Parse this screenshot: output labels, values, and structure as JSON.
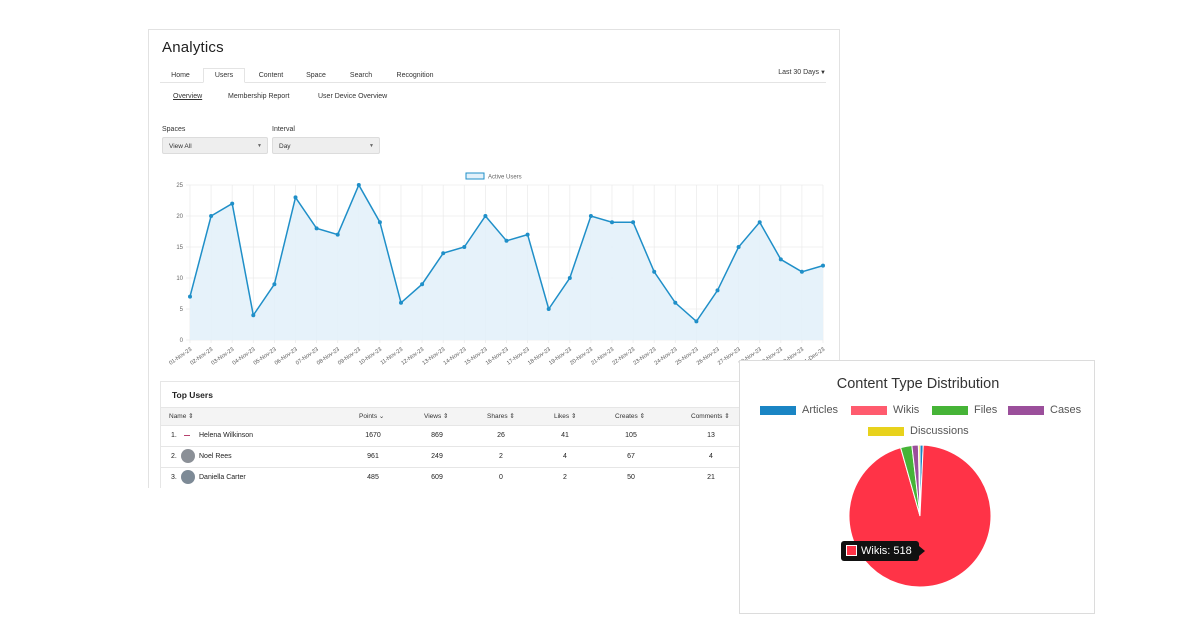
{
  "app": {
    "title": "Analytics"
  },
  "tabs": [
    {
      "label": "Home"
    },
    {
      "label": "Users"
    },
    {
      "label": "Content"
    },
    {
      "label": "Space"
    },
    {
      "label": "Search"
    },
    {
      "label": "Recognition"
    }
  ],
  "active_tab": "Users",
  "date_range": {
    "label": "Last 30 Days"
  },
  "subtabs": [
    {
      "label": "Overview"
    },
    {
      "label": "Membership Report"
    },
    {
      "label": "User Device Overview"
    }
  ],
  "filters": {
    "spaces": {
      "label": "Spaces",
      "value": "View All"
    },
    "interval": {
      "label": "Interval",
      "value": "Day"
    }
  },
  "top_users": {
    "title": "Top Users",
    "columns": [
      "Name",
      "Points",
      "Views",
      "Shares",
      "Likes",
      "Creates",
      "Comments"
    ],
    "rows": [
      {
        "rank": "1.",
        "name": "Helena Wilkinson",
        "points": "1670",
        "views": "869",
        "shares": "26",
        "likes": "41",
        "creates": "105",
        "comments": "13"
      },
      {
        "rank": "2.",
        "name": "Noel Rees",
        "points": "961",
        "views": "249",
        "shares": "2",
        "likes": "4",
        "creates": "67",
        "comments": "4"
      },
      {
        "rank": "3.",
        "name": "Daniella Carter",
        "points": "485",
        "views": "609",
        "shares": "0",
        "likes": "2",
        "creates": "50",
        "comments": "21"
      }
    ]
  },
  "content_card": {
    "title": "Content Type Distribution",
    "tooltip": {
      "label": "Wikis: 518",
      "color": "#ff3347"
    }
  },
  "chart_data": [
    {
      "type": "area",
      "legend": [
        "Active Users"
      ],
      "x": [
        "01-Nov-23",
        "02-Nov-23",
        "03-Nov-23",
        "04-Nov-23",
        "05-Nov-23",
        "06-Nov-23",
        "07-Nov-23",
        "08-Nov-23",
        "09-Nov-23",
        "10-Nov-23",
        "11-Nov-23",
        "12-Nov-23",
        "13-Nov-23",
        "14-Nov-23",
        "15-Nov-23",
        "16-Nov-23",
        "17-Nov-23",
        "18-Nov-23",
        "19-Nov-23",
        "20-Nov-23",
        "21-Nov-23",
        "22-Nov-23",
        "23-Nov-23",
        "24-Nov-23",
        "25-Nov-23",
        "26-Nov-23",
        "27-Nov-23",
        "28-Nov-23",
        "29-Nov-23",
        "30-Nov-23",
        "01-Dec-23"
      ],
      "series": [
        {
          "name": "Active Users",
          "color": "#1f8fc8",
          "values": [
            7,
            20,
            22,
            4,
            9,
            23,
            18,
            17,
            25,
            19,
            6,
            9,
            14,
            15,
            20,
            16,
            17,
            5,
            10,
            20,
            19,
            19,
            11,
            6,
            3,
            8,
            15,
            19,
            13,
            11,
            12
          ]
        }
      ],
      "ylim": [
        0,
        25
      ],
      "yticks": [
        "0",
        "5",
        "10",
        "15",
        "20",
        "25"
      ],
      "grid": true
    },
    {
      "type": "pie",
      "title": "Content Type Distribution",
      "labels": [
        "Articles",
        "Wikis",
        "Files",
        "Cases",
        "Discussions"
      ],
      "values": [
        4,
        518,
        14,
        8,
        2
      ],
      "colors": [
        "#1a85c4",
        "#ff5b6e",
        "#46b437",
        "#9b4f9b",
        "#e8d21c"
      ],
      "legend": "top"
    }
  ]
}
